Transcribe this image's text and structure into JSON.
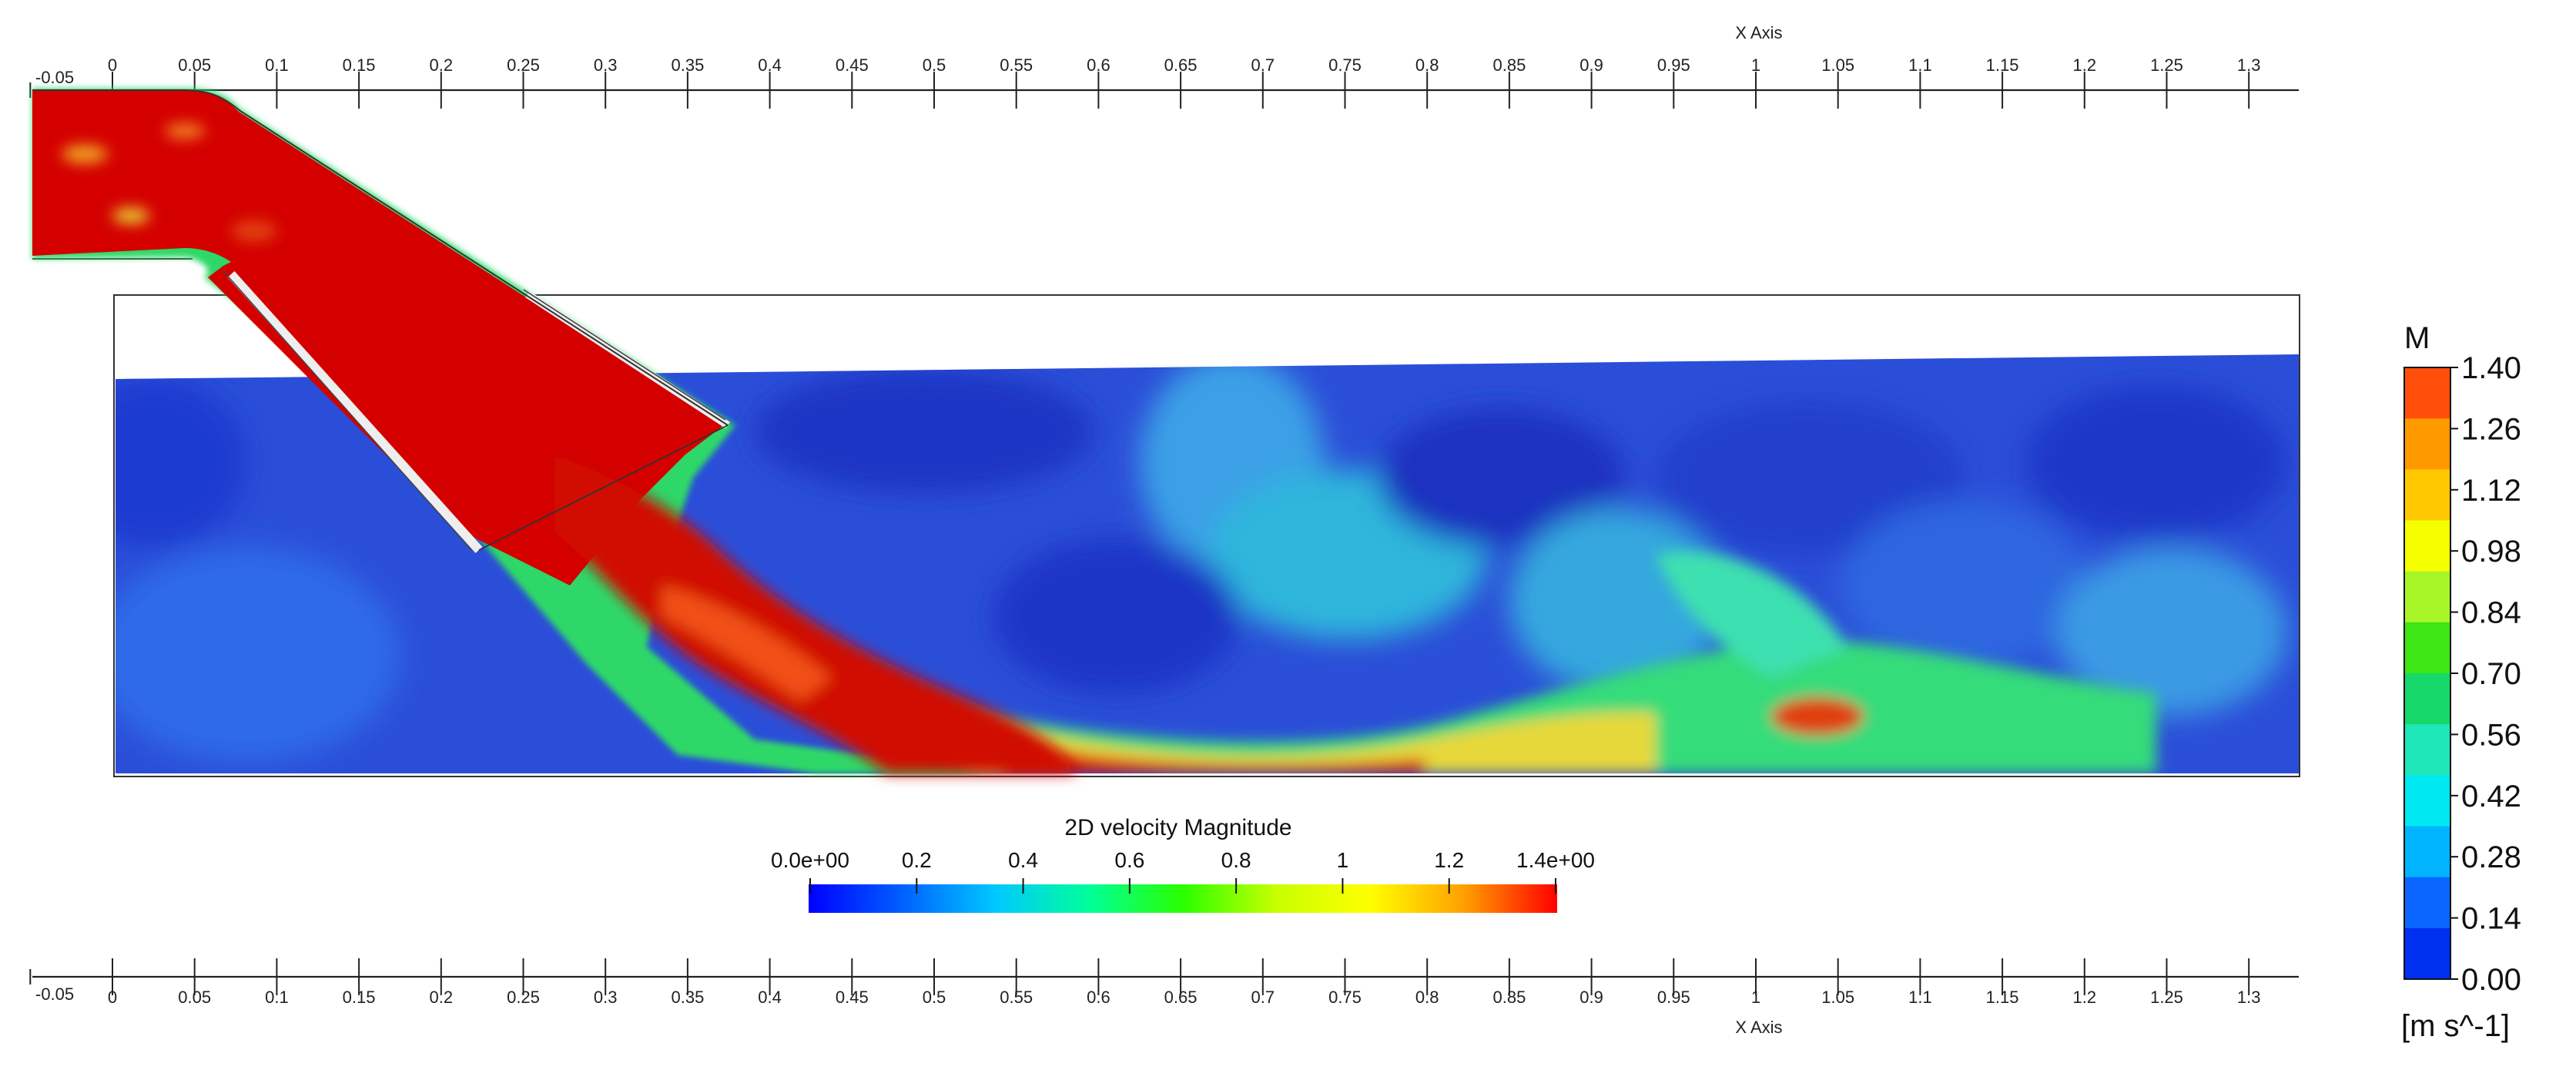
{
  "axes": {
    "top": {
      "title": "X Axis",
      "first_label": "-0.05",
      "labels": [
        "0",
        "0.05",
        "0.1",
        "0.15",
        "0.2",
        "0.25",
        "0.3",
        "0.35",
        "0.4",
        "0.45",
        "0.5",
        "0.55",
        "0.6",
        "0.65",
        "0.7",
        "0.75",
        "0.8",
        "0.85",
        "0.9",
        "0.95",
        "1",
        "1.05",
        "1.1",
        "1.15",
        "1.2",
        "1.25",
        "1.3"
      ]
    },
    "bottom": {
      "title": "X Axis",
      "first_label": "-0.05",
      "labels": [
        "0",
        "0.05",
        "0.1",
        "0.15",
        "0.2",
        "0.25",
        "0.3",
        "0.35",
        "0.4",
        "0.45",
        "0.5",
        "0.55",
        "0.6",
        "0.65",
        "0.7",
        "0.75",
        "0.8",
        "0.85",
        "0.9",
        "0.95",
        "1",
        "1.05",
        "1.1",
        "1.15",
        "1.2",
        "1.25",
        "1.3"
      ]
    }
  },
  "horizontal_colorbar": {
    "title": "2D velocity Magnitude",
    "tick_labels": [
      "0.0e+00",
      "0.2",
      "0.4",
      "0.6",
      "0.8",
      "1",
      "1.2",
      "1.4e+00"
    ],
    "gradient": [
      "#0000ff",
      "#0060ff",
      "#00c8ff",
      "#00ff9a",
      "#2aff00",
      "#c8ff00",
      "#ffff00",
      "#ffa000",
      "#ff0000"
    ]
  },
  "vertical_legend": {
    "title": "M",
    "unit": "[m s^-1]",
    "labels": [
      "1.40",
      "1.26",
      "1.12",
      "0.98",
      "0.84",
      "0.70",
      "0.56",
      "0.42",
      "0.28",
      "0.14",
      "0.00"
    ],
    "colors": [
      "#ff4d0a",
      "#ff9900",
      "#ffc800",
      "#f5ff00",
      "#a8f527",
      "#3de614",
      "#16d96a",
      "#1ee6b8",
      "#00e8f0",
      "#00b4ff",
      "#0a66ff",
      "#0030f0"
    ]
  },
  "field_colors": {
    "deep_blue": "#1a32c8",
    "blue": "#2e5ce6",
    "cyan": "#28c8e0",
    "green": "#30e070",
    "yellow": "#e8e020",
    "red": "#d40000"
  }
}
